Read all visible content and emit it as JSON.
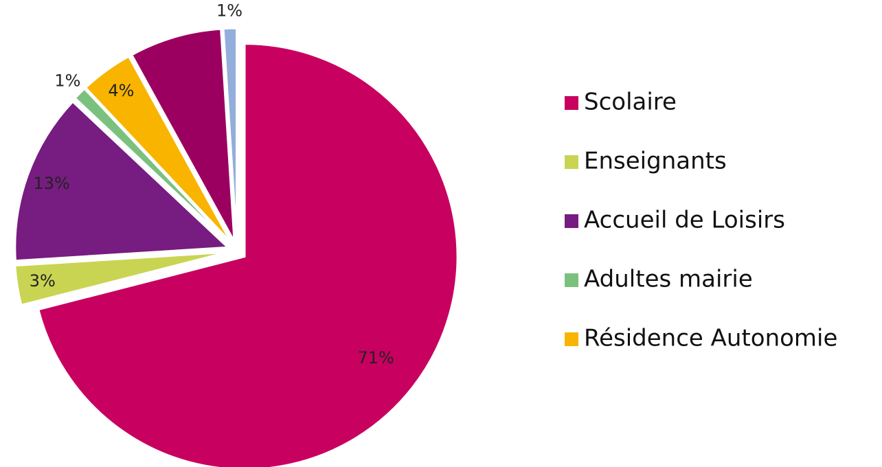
{
  "chart_data": {
    "type": "pie",
    "categories": [
      "Scolaire",
      "Enseignants",
      "Accueil de Loisirs",
      "Adultes mairie",
      "Résidence Autonomie",
      null,
      null
    ],
    "values": [
      71,
      3,
      13,
      1,
      4,
      7,
      1
    ],
    "value_labels": [
      "71%",
      "3%",
      "13%",
      "1%",
      "4%",
      null,
      "1%"
    ],
    "colors": [
      "#c8005f",
      "#c9d452",
      "#771c80",
      "#7bc17e",
      "#f9b400",
      "#9b0060",
      "#93aedb"
    ],
    "legend": "right"
  }
}
